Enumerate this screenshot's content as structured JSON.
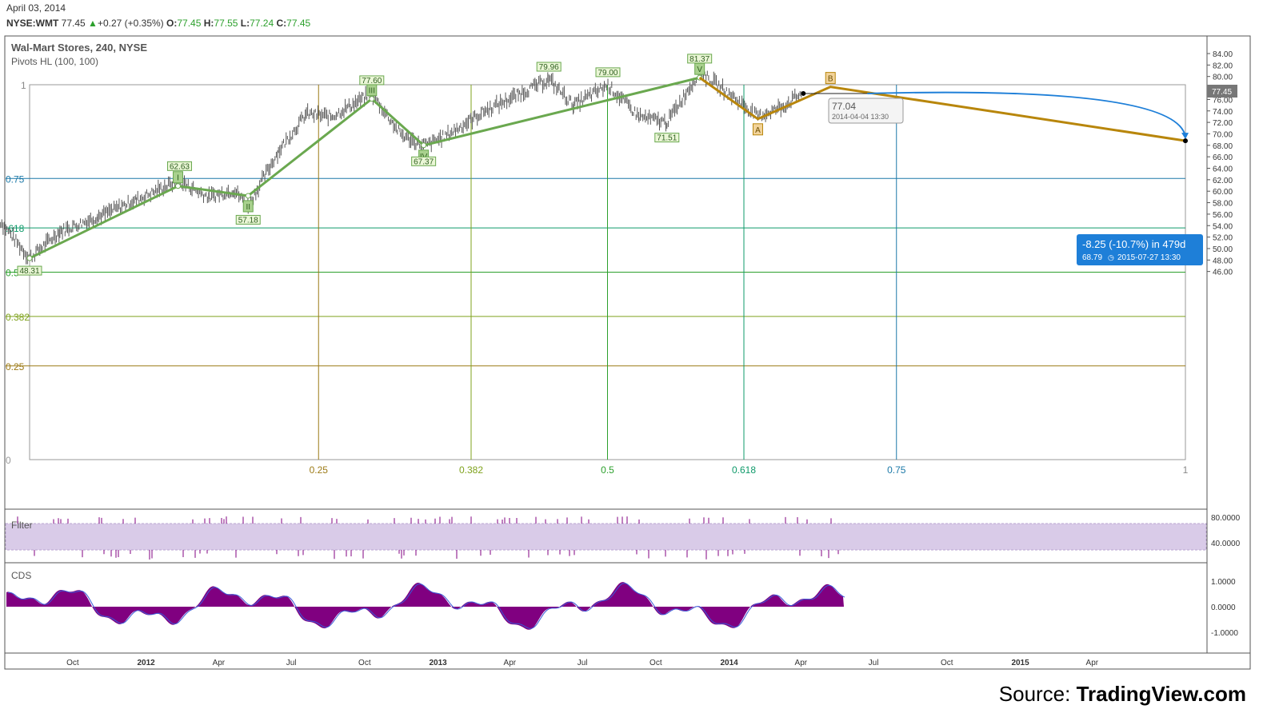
{
  "header": {
    "date": "April 03, 2014",
    "symbol": "NYSE:WMT",
    "last": "77.45",
    "change": "+0.27 (+0.35%)",
    "o_label": "O:",
    "o": "77.45",
    "h_label": "H:",
    "h": "77.55",
    "l_label": "L:",
    "l": "77.24",
    "c_label": "C:",
    "c": "77.45",
    "title": "Wal-Mart Stores, 240, NYSE",
    "indicator": "Pivots HL (100, 100)"
  },
  "source": {
    "prefix": "Source: ",
    "brand": "TradingView.com"
  },
  "colors": {
    "up": "#2ca02c",
    "price": "#555555",
    "wave": "#6aa84f",
    "abc": "#b8860b",
    "projection": "#1e7fd8",
    "cds": "#800080",
    "filter": "#d9cbe8"
  },
  "chart_data": [
    {
      "type": "line",
      "title": "Wal-Mart Stores, 240, NYSE",
      "price_axis": {
        "ticks": [
          46,
          48,
          50,
          52,
          54,
          56,
          58,
          60,
          62,
          64,
          66,
          68,
          70,
          72,
          74,
          76,
          78,
          80,
          82,
          84
        ],
        "ylim": [
          45,
          85.5
        ]
      },
      "time_axis": {
        "labels": [
          "Oct",
          "2012",
          "Apr",
          "Jul",
          "Oct",
          "2013",
          "Apr",
          "Jul",
          "Oct",
          "2014",
          "Apr",
          "Jul",
          "Oct",
          "2015",
          "Apr"
        ]
      },
      "last_price_label": "77.45",
      "elliott_wave": {
        "series": [
          {
            "x": "2011-08-08",
            "y": 48.31
          },
          {
            "x": "2012-02-10",
            "y": 60.9
          },
          {
            "x": "2012-05-08",
            "y": 59.2
          },
          {
            "x": "2012-10-10",
            "y": 76.1
          },
          {
            "x": "2012-12-14",
            "y": 68.0
          },
          {
            "x": "2013-11-25",
            "y": 79.8
          }
        ],
        "labels": [
          "I",
          "II",
          "III",
          "IV",
          "V"
        ]
      },
      "correction": {
        "series": [
          {
            "x": "2013-11-25",
            "y": 79.8
          },
          {
            "x": "2014-02-06",
            "y": 72.6
          },
          {
            "x": "2014-05-08",
            "y": 78.2
          },
          {
            "x": "2015-07-27",
            "y": 68.79
          }
        ],
        "labels": [
          "A",
          "B"
        ]
      },
      "pivot_labels": [
        {
          "text": "48.31",
          "x": "2011-08-08",
          "y": 48.31
        },
        {
          "text": "62.63",
          "x": "2012-02-12",
          "y": 62.63
        },
        {
          "text": "57.18",
          "x": "2012-05-08",
          "y": 57.18
        },
        {
          "text": "77.60",
          "x": "2012-10-10",
          "y": 77.6
        },
        {
          "text": "67.37",
          "x": "2012-12-14",
          "y": 67.37
        },
        {
          "text": "79.96",
          "x": "2013-05-20",
          "y": 79.96
        },
        {
          "text": "79.00",
          "x": "2013-08-02",
          "y": 79.0
        },
        {
          "text": "71.51",
          "x": "2013-10-15",
          "y": 71.51
        },
        {
          "text": "81.37",
          "x": "2013-11-25",
          "y": 81.37
        }
      ],
      "fib_levels": [
        {
          "label": "0",
          "color": "#999999"
        },
        {
          "label": "0.25",
          "color": "#9c7a16"
        },
        {
          "label": "0.382",
          "color": "#7fa21d"
        },
        {
          "label": "0.5",
          "color": "#2ca02c"
        },
        {
          "label": ".618",
          "color": "#0f9a6a"
        },
        {
          "label": "0.75",
          "color": "#1c79a8"
        },
        {
          "label": "1",
          "color": "#888888"
        }
      ],
      "fib_time": [
        {
          "label": "0.25",
          "color": "#9c7a16"
        },
        {
          "label": "0.382",
          "color": "#7fa21d"
        },
        {
          "label": "0.5",
          "color": "#2ca02c"
        },
        {
          "label": "0.618",
          "color": "#0f9a6a"
        },
        {
          "label": "0.75",
          "color": "#1c79a8"
        },
        {
          "label": "1",
          "color": "#888888"
        }
      ],
      "current_tooltip": {
        "price": "77.04",
        "time": "2014-04-04 13:30"
      },
      "projection": {
        "text": "-8.25 (-10.7%) in 479d",
        "subtext": "68.79",
        "time": "2015-07-27  13:30",
        "x": "2015-07-27",
        "y": 68.79
      }
    },
    {
      "type": "area",
      "title": "Filter",
      "yticks": [
        "80.0000",
        "40.0000"
      ]
    },
    {
      "type": "area",
      "title": "CDS",
      "yticks": [
        "1.0000",
        "0.0000",
        "-1.0000"
      ]
    }
  ]
}
